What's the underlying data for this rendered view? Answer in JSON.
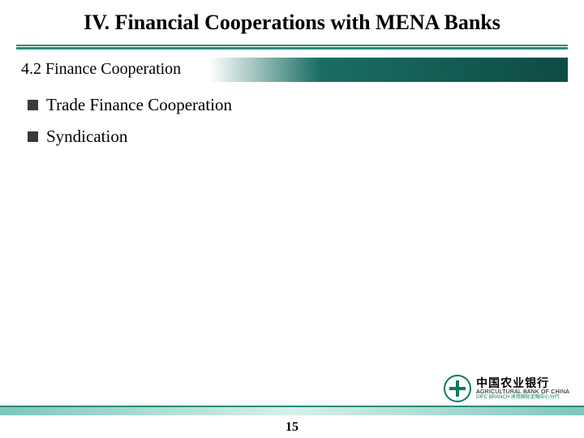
{
  "title": "IV. Financial Cooperations with MENA Banks",
  "subtitle": "4.2 Finance Cooperation",
  "bullets": [
    {
      "text": "Trade Finance Cooperation"
    },
    {
      "text": "Syndication"
    }
  ],
  "pageNumber": "15",
  "logo": {
    "chinese": "中国农业银行",
    "english": "AGRICULTURAL BANK OF CHINA",
    "sub": "DIFC BRANCH  迪拜国际金融中心分行"
  },
  "colors": {
    "tealDark": "#0d4b44",
    "teal": "#2a8a7a",
    "tealLight": "#7cc7bb",
    "logoGreen": "#0a7a5e",
    "black": "#000000",
    "white": "#ffffff",
    "bulletGray": "#3a3a3a"
  }
}
